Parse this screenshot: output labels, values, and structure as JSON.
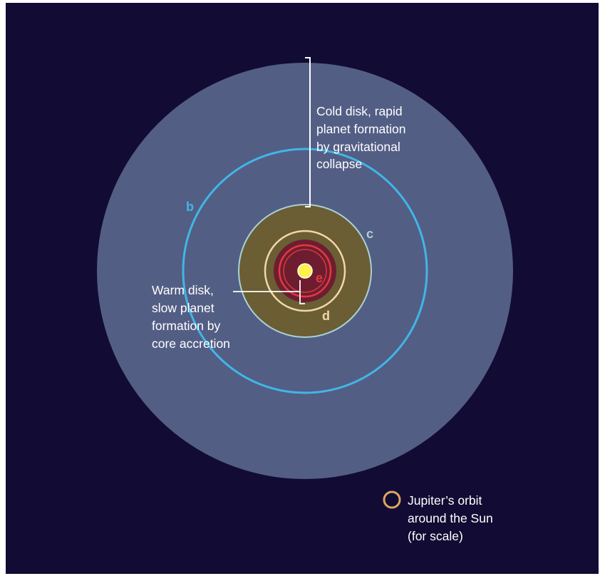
{
  "annotations": {
    "cold_disk": [
      "Cold disk, rapid",
      "planet formation",
      "by gravitational",
      "collapse"
    ],
    "warm_disk": [
      "Warm disk,",
      "slow planet",
      "formation by",
      "core accretion"
    ]
  },
  "planets": {
    "b": "b",
    "c": "c",
    "d": "d",
    "e": "e"
  },
  "legend": {
    "lines": [
      "Jupiter’s orbit",
      "around the Sun",
      "(for scale)"
    ]
  },
  "colors": {
    "background": "#120b33",
    "cold_disk": "#535e85",
    "warm_disk": "#6b5d34",
    "inner_disk": "#6e1d30",
    "orbit_b": "#41b6e6",
    "orbit_c": "#a9d2d4",
    "orbit_d": "#f2d7a6",
    "orbit_e": "#e3393f",
    "star": "#fff04a",
    "jupiter_orbit": "#dba660"
  }
}
